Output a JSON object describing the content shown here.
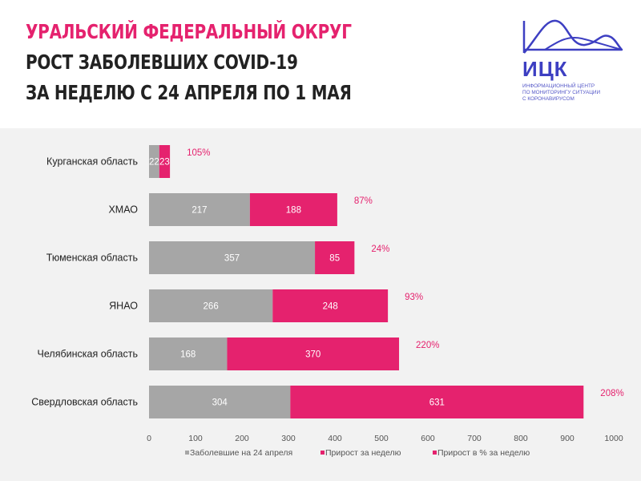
{
  "header": {
    "title_line1": "УРАЛЬСКИЙ ФЕДЕРАЛЬНЫЙ ОКРУГ",
    "title_line2": "РОСТ ЗАБОЛЕВШИХ COVID-19",
    "title_line3": "ЗА НЕДЕЛЮ С 24 АПРЕЛЯ ПО 1 МАЯ"
  },
  "logo": {
    "name": "ИЦК",
    "subtitle_lines": [
      "ИНФОРМАЦИОННЫЙ ЦЕНТР",
      "ПО МОНИТОРИНГУ СИТУАЦИИ",
      "С КОРОНАВИРУСОМ"
    ]
  },
  "colors": {
    "base": "#a6a6a6",
    "growth": "#e5226e",
    "percent": "#e5226e",
    "title_accent": "#e5226e",
    "logo": "#3d3fc2"
  },
  "chart_data": {
    "type": "bar",
    "orientation": "horizontal",
    "stacked": true,
    "categories": [
      "Курганская область",
      "ХМАО",
      "Тюменская область",
      "ЯНАО",
      "Челябинская область",
      "Свердловская область"
    ],
    "series": [
      {
        "name": "Заболевшие на 24 апреля",
        "values": [
          22,
          217,
          357,
          266,
          168,
          304
        ],
        "color": "#a6a6a6"
      },
      {
        "name": "Прирост за неделю",
        "values": [
          23,
          188,
          85,
          248,
          370,
          631
        ],
        "color": "#e5226e"
      }
    ],
    "percent_labels": [
      "105%",
      "87%",
      "24%",
      "93%",
      "220%",
      "208%"
    ],
    "percent_series_name": "Прирост в % за неделю",
    "xlim": [
      0,
      1000
    ],
    "xticks": [
      0,
      100,
      200,
      300,
      400,
      500,
      600,
      700,
      800,
      900,
      1000
    ],
    "grid": false,
    "legend_position": "bottom"
  }
}
